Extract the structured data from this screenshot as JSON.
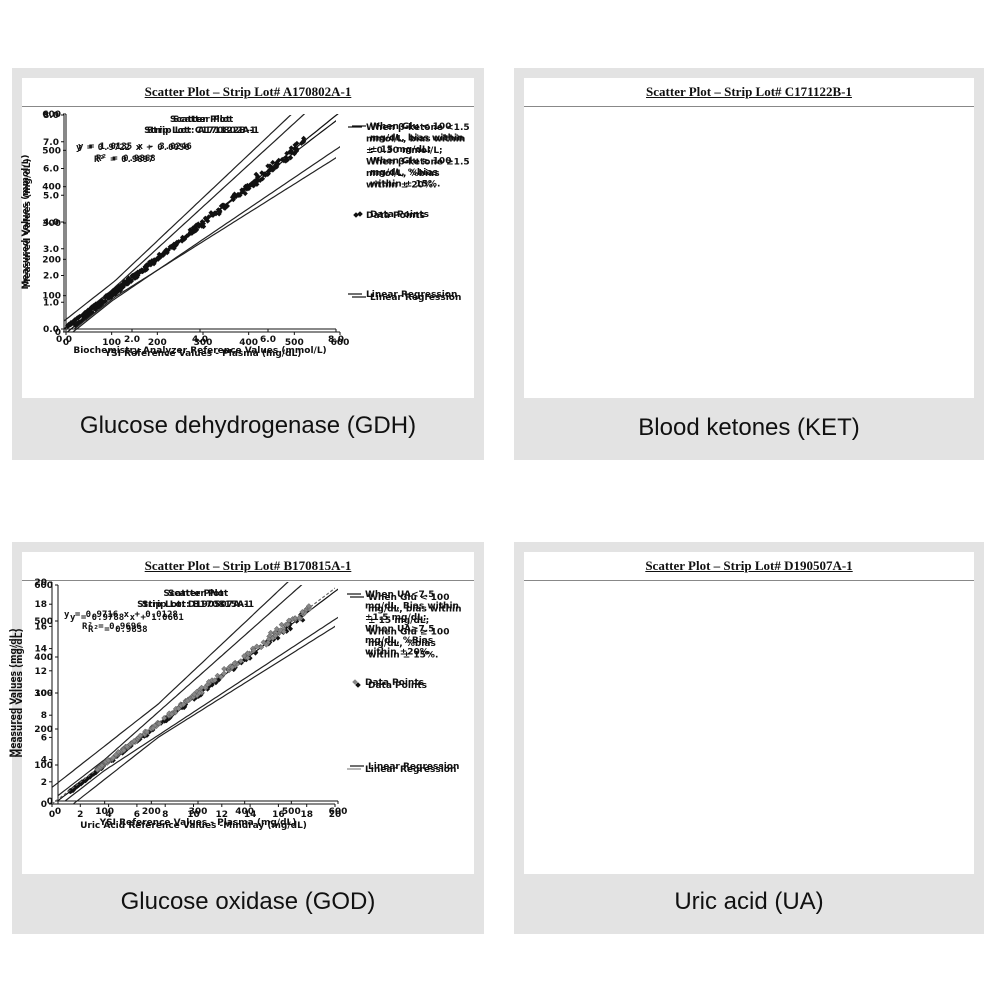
{
  "chart_data": [
    {
      "type": "scatter",
      "header": "Scatter Plot – Strip Lot# A170802A-1",
      "title": "Scatter Plot",
      "subtitle": "Strip Lot: A170802A-1",
      "xlabel": "YSI Reference Values - Plasma (mg/dL)",
      "ylabel": "Measured Values (mg/dL)",
      "xlim": [
        0,
        600
      ],
      "ylim": [
        0,
        600
      ],
      "xticks": [
        "0",
        "100",
        "200",
        "300",
        "400",
        "500",
        "600"
      ],
      "yticks": [
        "0",
        "100",
        "200",
        "300",
        "400",
        "500",
        "600"
      ],
      "equation": "y = 1.0135 x - 3.0246",
      "r2": "R² = 0.9868",
      "slope": 1.0135,
      "intercept": -3.0246,
      "bias_threshold": 100,
      "bias_abs": 15,
      "bias_pct": 0.15,
      "legend_note": [
        "When Glu < 100",
        "mg/dL, bias within",
        "± 15 mg/dL;",
        "When Glu ≥ 100",
        "mg/dL, %bias",
        "within ± 15%."
      ],
      "legend_points": "Data Points",
      "legend_line": "Linear Regression",
      "marker_color": "#111111",
      "point_range": [
        20,
        530
      ],
      "caption": "Glucose dehydrogenase (GDH)"
    },
    {
      "type": "scatter",
      "header": "Scatter Plot – Strip Lot# C171122B-1",
      "title": "Scatter Plot",
      "subtitle": "Strip Lot: C171122B-1",
      "xlabel": "Biochemistry Analyzer Reference Values (mmol/L)",
      "ylabel": "Measured Values (mmol/L)",
      "xlim": [
        0,
        8
      ],
      "ylim": [
        0,
        8
      ],
      "xticks": [
        "0.0",
        "2.0",
        "4.0",
        "6.0",
        "8.0"
      ],
      "yticks": [
        "0.0",
        "1.0",
        "2.0",
        "3.0",
        "4.0",
        "5.0",
        "6.0",
        "7.0",
        "8.0"
      ],
      "equation": "y = 0.9722 x + 0.0056",
      "r2": "R² = 0.9897",
      "slope": 0.9722,
      "intercept": 0.0056,
      "bias_threshold": 1.5,
      "bias_abs": 0.3,
      "bias_pct": 0.2,
      "legend_note": [
        "When β-ketone <1.5",
        "mmol/L, bias within",
        "± 0.30 mmol/L;",
        "When β-ketone ≥1.5",
        "mmol/L, %bias",
        "within ± 20%."
      ],
      "legend_points": "Data Points",
      "legend_line": "Linear Regression",
      "marker_color": "#111111",
      "point_range": [
        0.1,
        7.0
      ],
      "caption": "Blood ketones (KET)"
    },
    {
      "type": "scatter",
      "header": "Scatter Plot – Strip Lot# B170815A-1",
      "title": "Scatter Plot",
      "subtitle": "Strip Lot: B170815A-1",
      "xlabel": "YSI Reference Values - Plasma (mg/dL)",
      "ylabel": "Measured Values (mg/dL)",
      "xlim": [
        0,
        600
      ],
      "ylim": [
        0,
        600
      ],
      "xticks": [
        "0",
        "100",
        "200",
        "300",
        "400",
        "500",
        "600"
      ],
      "yticks": [
        "0",
        "100",
        "200",
        "300",
        "400",
        "500",
        "600"
      ],
      "equation": "y = 0.9788 x + 1.0661",
      "r2": "R² = 0.9838",
      "slope": 0.9788,
      "intercept": 1.0661,
      "bias_threshold": 100,
      "bias_abs": 15,
      "bias_pct": 0.15,
      "legend_note": [
        "When Glu < 100",
        "mg/dL, bias within",
        "± 15 mg/dL;",
        "When Glu ≥ 100",
        "mg/dL, %bias",
        "within ± 15%."
      ],
      "legend_points": "Data Points",
      "legend_line": "Linear Regression",
      "marker_color": "#111111",
      "point_range": [
        25,
        530
      ],
      "caption": "Glucose oxidase (GOD)"
    },
    {
      "type": "scatter",
      "header": "Scatter Plot – Strip Lot# D190507A-1",
      "title": "Scatter Plot",
      "subtitle": "Strip Lot: D190507A-1",
      "xlabel": "Uric Acid Reference Values -Mindray (mg/dL)",
      "ylabel": "Measured Values (mg/dL)",
      "xlim": [
        0,
        20
      ],
      "ylim": [
        0,
        20
      ],
      "xticks": [
        "0",
        "2",
        "4",
        "6",
        "8",
        "10",
        "12",
        "14",
        "16",
        "18",
        "20"
      ],
      "yticks": [
        "0",
        "2",
        "4",
        "6",
        "8",
        "10",
        "12",
        "14",
        "16",
        "18",
        "20"
      ],
      "equation": "y = 0.9716 x + 0.0128",
      "r2": "R² = 0.9696",
      "slope": 0.9716,
      "intercept": 0.0128,
      "bias_threshold": 7.5,
      "bias_abs": 1.5,
      "bias_pct": 0.2,
      "legend_note": [
        "When UA<7.5",
        "mg/dL, Bias within",
        "±1.5 mg/dL;",
        "When UA≥7.5",
        "mg/dL, %Bias",
        "within ±20%."
      ],
      "legend_points": "Data Points",
      "legend_line": "Linear Regression",
      "marker_color": "#888888",
      "point_range": [
        3.2,
        18.3
      ],
      "caption": "Uric acid (UA)"
    }
  ]
}
